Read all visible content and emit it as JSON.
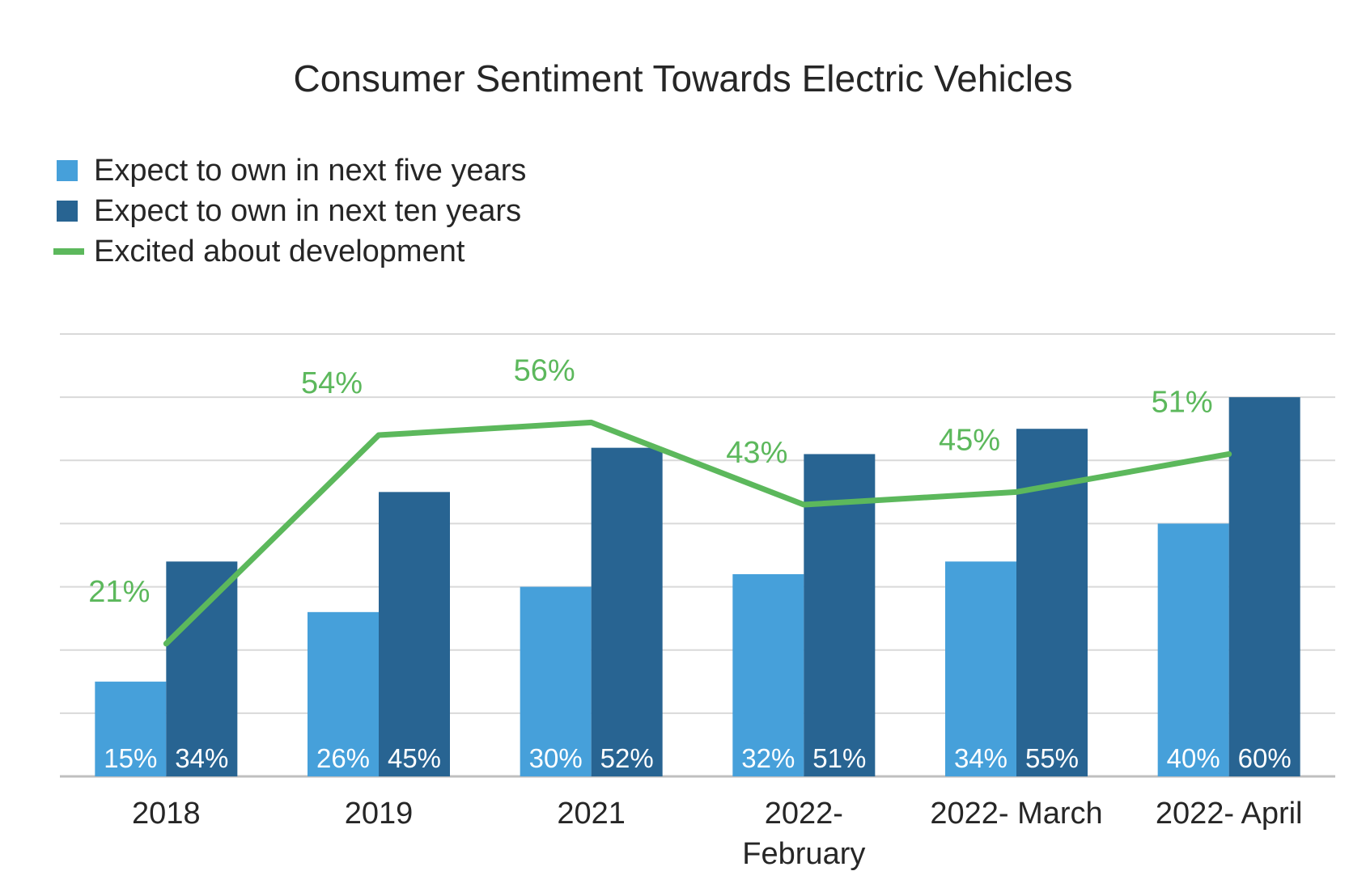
{
  "chart_data": {
    "type": "bar",
    "title": "Consumer Sentiment Towards Electric Vehicles",
    "categories": [
      "2018",
      "2019",
      "2021",
      "2022-\nFebruary",
      "2022- March",
      "2022- April"
    ],
    "series": [
      {
        "name": "Expect to own in next five years",
        "kind": "bar",
        "color": "#46a0da",
        "values": [
          15,
          26,
          30,
          32,
          34,
          40
        ],
        "labels": [
          "15%",
          "26%",
          "30%",
          "32%",
          "34%",
          "40%"
        ]
      },
      {
        "name": "Expect to own in next ten years",
        "kind": "bar",
        "color": "#286492",
        "values": [
          34,
          45,
          52,
          51,
          55,
          60
        ],
        "labels": [
          "34%",
          "45%",
          "52%",
          "51%",
          "55%",
          "60%"
        ]
      },
      {
        "name": "Excited about development",
        "kind": "line",
        "color": "#5cb85c",
        "values": [
          21,
          54,
          56,
          43,
          45,
          51
        ],
        "labels": [
          "21%",
          "54%",
          "56%",
          "43%",
          "45%",
          "51%"
        ]
      }
    ],
    "ylim": [
      0,
      70
    ],
    "grid": true,
    "legend_position": "top-left",
    "xlabel": "",
    "ylabel": ""
  }
}
